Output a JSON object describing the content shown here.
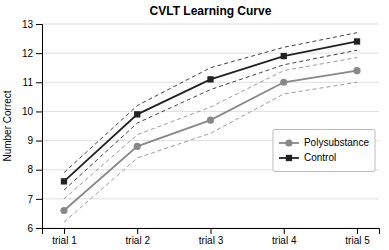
{
  "chart_data": {
    "type": "line",
    "title": "CVLT Learning Curve",
    "ylabel": "Number Correct",
    "categories": [
      "trial 1",
      "trial 2",
      "trial 3",
      "trial 4",
      "trial 5"
    ],
    "ylim": [
      6,
      13
    ],
    "yticks": [
      6,
      7,
      8,
      9,
      10,
      11,
      12,
      13
    ],
    "grid": true,
    "legend": "right",
    "series": [
      {
        "name": "Polysubstance",
        "color": "#888888",
        "marker": "circle",
        "values": [
          6.6,
          8.8,
          9.7,
          11.0,
          11.4
        ],
        "ci_upper": [
          7.0,
          9.2,
          10.15,
          11.4,
          11.85
        ],
        "ci_lower": [
          6.2,
          8.4,
          9.25,
          10.6,
          11.0
        ]
      },
      {
        "name": "Control",
        "color": "#222222",
        "marker": "square",
        "values": [
          7.6,
          9.9,
          11.1,
          11.9,
          12.4
        ],
        "ci_upper": [
          7.9,
          10.2,
          11.5,
          12.2,
          12.7
        ],
        "ci_lower": [
          7.3,
          9.6,
          10.75,
          11.6,
          12.1
        ]
      }
    ]
  }
}
